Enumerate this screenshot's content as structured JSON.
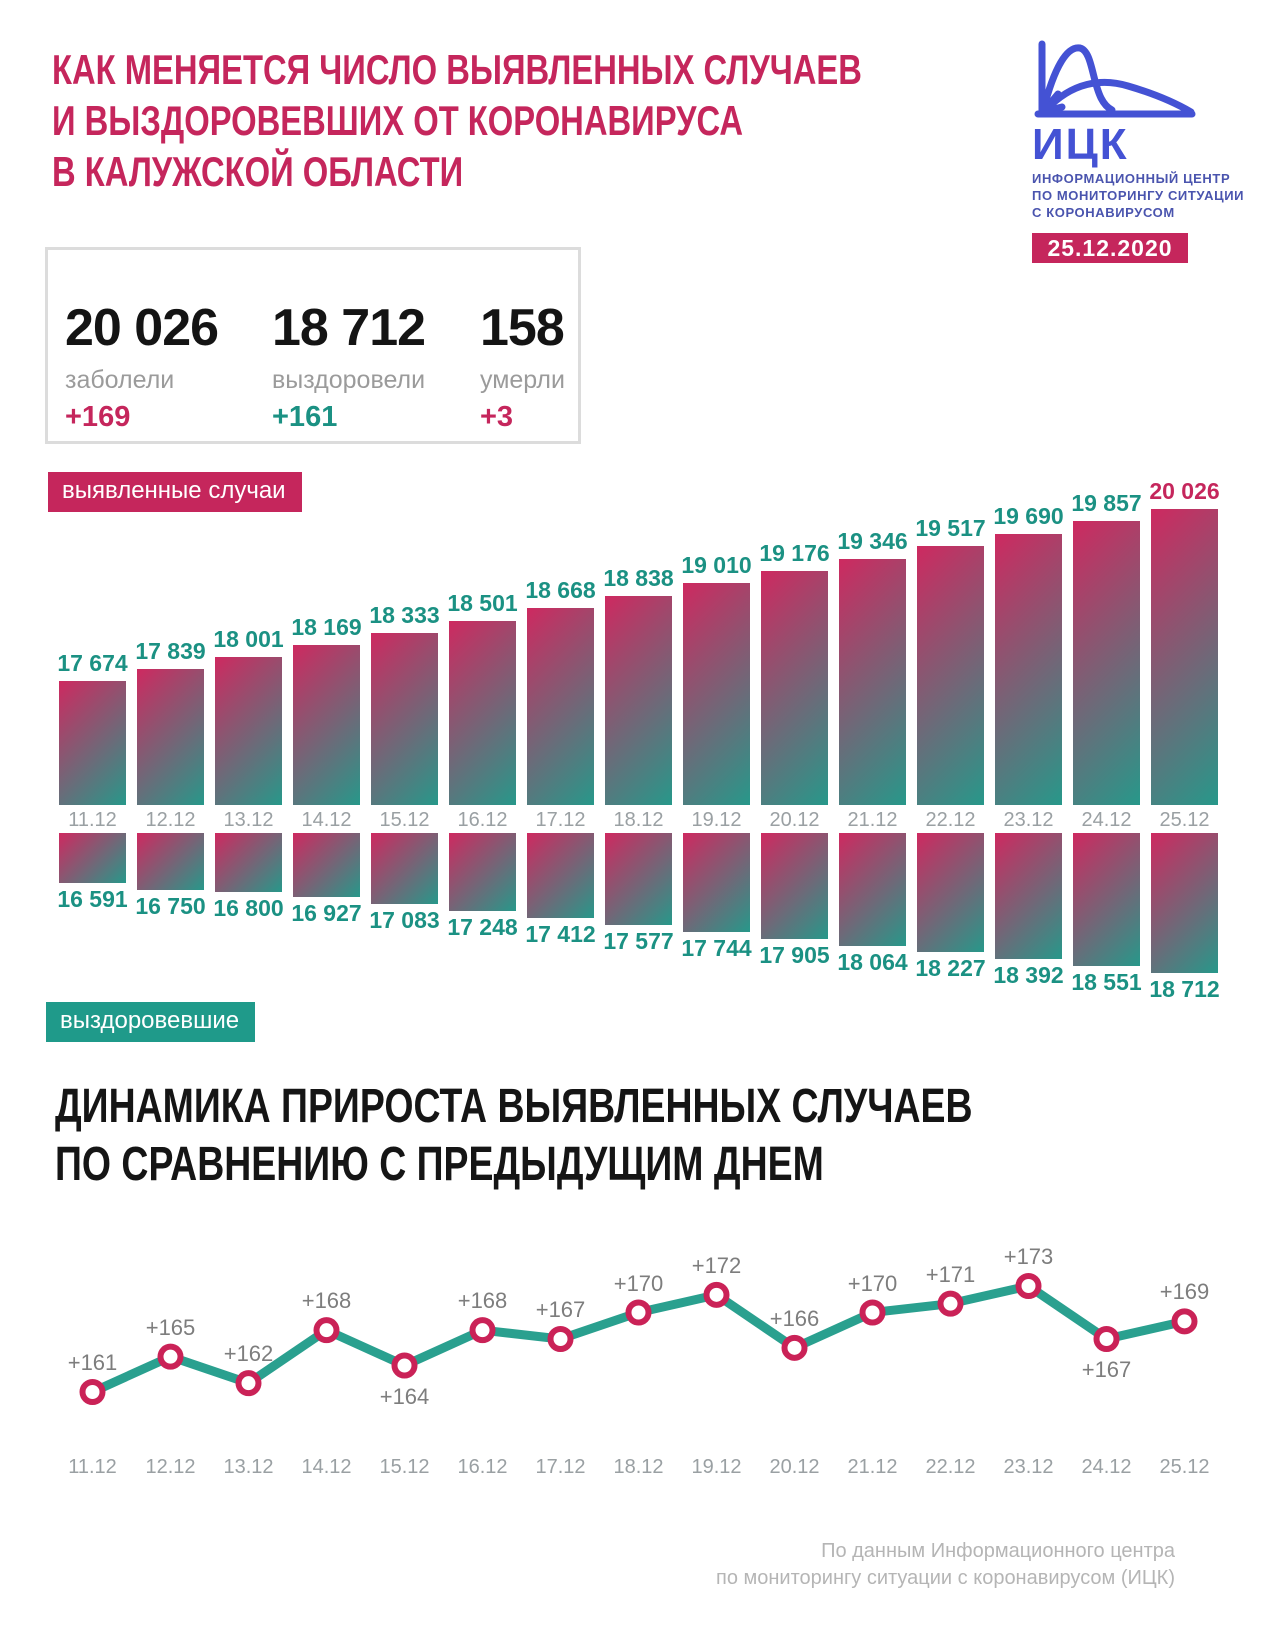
{
  "header": {
    "title_lines": [
      "КАК МЕНЯЕТСЯ ЧИСЛО ВЫЯВЛЕННЫХ СЛУЧАЕВ",
      "И ВЫЗДОРОВЕВШИХ ОТ КОРОНАВИРУСА",
      "В КАЛУЖСКОЙ ОБЛАСТИ"
    ],
    "logo": {
      "abbr": "ИЦК",
      "org_lines": [
        "ИНФОРМАЦИОННЫЙ ЦЕНТР",
        "ПО МОНИТОРИНГУ СИТУАЦИИ",
        "С КОРОНАВИРУСОМ"
      ],
      "date": "25.12.2020"
    }
  },
  "stats": {
    "items": [
      {
        "value": "20 026",
        "label": "заболели",
        "delta": "+169",
        "delta_color": "crimson"
      },
      {
        "value": "18 712",
        "label": "выздоровели",
        "delta": "+161",
        "delta_color": "teal"
      },
      {
        "value": "158",
        "label": "умерли",
        "delta": "+3",
        "delta_color": "crimson"
      }
    ]
  },
  "section2_title_lines": [
    "ДИНАМИКА ПРИРОСТА ВЫЯВЛЕННЫХ СЛУЧАЕВ",
    "ПО СРАВНЕНИЮ С ПРЕДЫДУЩИМ ДНЕМ"
  ],
  "footer": {
    "line1": "По данным Информационного центра",
    "line2": "по мониторингу ситуации с коронавирусом (ИЦК)"
  },
  "colors": {
    "crimson": "#c5265c",
    "teal": "#1f9a8a",
    "bar_gradient_start": "#ce2960",
    "bar_gradient_end": "#27988a",
    "logo_blue": "#4452d4",
    "line_stroke": "#2aa08f",
    "marker_ring": "#ca2257"
  },
  "chart_data": [
    {
      "type": "bar",
      "title": "выявленные случаи / выздоровевшие (нарастающим итогом)",
      "categories": [
        "11.12",
        "12.12",
        "13.12",
        "14.12",
        "15.12",
        "16.12",
        "17.12",
        "18.12",
        "19.12",
        "20.12",
        "21.12",
        "22.12",
        "23.12",
        "24.12",
        "25.12"
      ],
      "series": [
        {
          "name": "выявленные случаи",
          "values": [
            17674,
            17839,
            18001,
            18169,
            18333,
            18501,
            18668,
            18838,
            19010,
            19176,
            19346,
            19517,
            19690,
            19857,
            20026
          ]
        },
        {
          "name": "выздоровевшие",
          "values": [
            16591,
            16750,
            16800,
            16927,
            17083,
            17248,
            17412,
            17577,
            17744,
            17905,
            18064,
            18227,
            18392,
            18551,
            18712
          ]
        }
      ],
      "layout_hints": {
        "orientation": "mirrored-columns",
        "value_labels": true,
        "last_cases_label_color": "#c5265c",
        "value_label_color": "#1b9183",
        "grid": false,
        "legend_position": "chip-left"
      }
    },
    {
      "type": "line",
      "title": "ДИНАМИКА ПРИРОСТА ВЫЯВЛЕННЫХ СЛУЧАЕВ ПО СРАВНЕНИЮ С ПРЕДЫДУЩИМ ДНЕМ",
      "categories": [
        "11.12",
        "12.12",
        "13.12",
        "14.12",
        "15.12",
        "16.12",
        "17.12",
        "18.12",
        "19.12",
        "20.12",
        "21.12",
        "22.12",
        "23.12",
        "24.12",
        "25.12"
      ],
      "values": [
        161,
        165,
        162,
        168,
        164,
        168,
        167,
        170,
        172,
        166,
        170,
        171,
        173,
        167,
        169
      ],
      "label_prefix": "+",
      "ylim": [
        161,
        173
      ],
      "layout_hints": {
        "grid": false,
        "markers": "ring",
        "labels_below_indices": [
          4,
          13
        ]
      }
    }
  ]
}
